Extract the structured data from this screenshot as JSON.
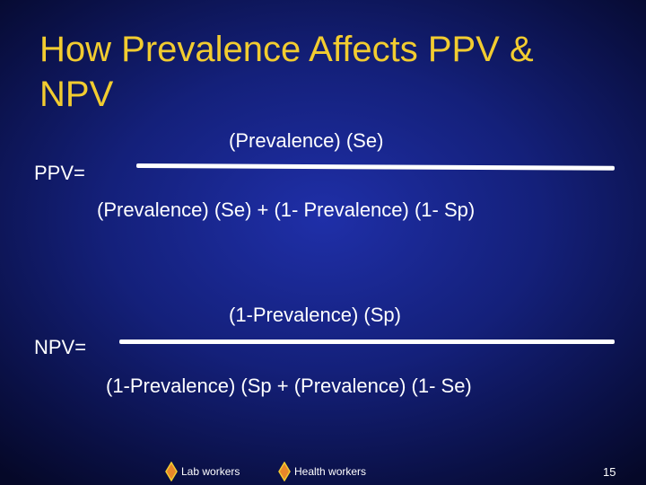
{
  "slide": {
    "title": "How Prevalence Affects PPV & NPV",
    "page_number": "15"
  },
  "ppv": {
    "label": "PPV=",
    "numerator": "(Prevalence) (Se)",
    "denominator": "(Prevalence) (Se) + (1- Prevalence) (1- Sp)"
  },
  "npv": {
    "label": "NPV=",
    "numerator": "(1-Prevalence) (Sp)",
    "denominator": "(1-Prevalence) (Sp + (Prevalence) (1- Se)"
  },
  "footer": {
    "links": [
      {
        "label": "Lab workers",
        "icon": "diamond-icon"
      },
      {
        "label": "Health workers",
        "icon": "diamond-icon"
      }
    ]
  },
  "colors": {
    "title": "#f2cc30",
    "text": "#ffffff",
    "background": "#14207a",
    "diamond_fill": "#e8872a",
    "diamond_stroke": "#f2cc30"
  }
}
